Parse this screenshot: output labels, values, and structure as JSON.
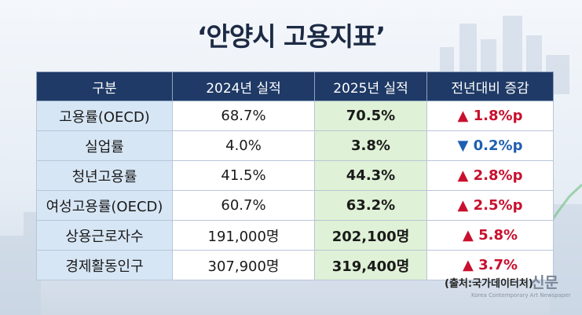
{
  "header": {
    "title": "‘안양시 고용지표’"
  },
  "table": {
    "columns": [
      "구분",
      "2024년 실적",
      "2025년 실적",
      "전년대비 증감"
    ],
    "rows": [
      [
        "고용률(OECD)",
        "68.7%",
        "70.5%",
        "▲ 1.8%p"
      ],
      [
        "실업률",
        "4.0%",
        "3.8%",
        "▼ 0.2%p"
      ],
      [
        "청년고용률",
        "41.5%",
        "44.3%",
        "▲ 2.8%p"
      ],
      [
        "여성고용률(OECD)",
        "60.7%",
        "63.2%",
        "▲ 2.5%p"
      ],
      [
        "상용근로자수",
        "191,000명",
        "202,100명",
        "▲ 5.8%"
      ],
      [
        "경제활동인구",
        "307,900명",
        "319,400명",
        "▲ 3.7%"
      ]
    ]
  },
  "footer": {
    "source": "(출처:국가데이터처)",
    "watermark": "신문",
    "watermark_en": "Korea Contemporary Art Newspaper"
  }
}
